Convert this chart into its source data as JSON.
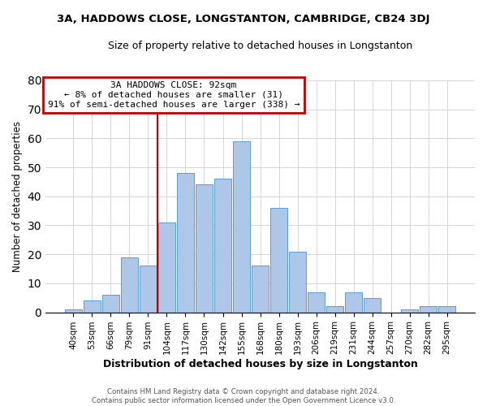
{
  "title": "3A, HADDOWS CLOSE, LONGSTANTON, CAMBRIDGE, CB24 3DJ",
  "subtitle": "Size of property relative to detached houses in Longstanton",
  "xlabel": "Distribution of detached houses by size in Longstanton",
  "ylabel": "Number of detached properties",
  "footer_line1": "Contains HM Land Registry data © Crown copyright and database right 2024.",
  "footer_line2": "Contains public sector information licensed under the Open Government Licence v3.0.",
  "bar_labels": [
    "40sqm",
    "53sqm",
    "66sqm",
    "79sqm",
    "91sqm",
    "104sqm",
    "117sqm",
    "130sqm",
    "142sqm",
    "155sqm",
    "168sqm",
    "180sqm",
    "193sqm",
    "206sqm",
    "219sqm",
    "231sqm",
    "244sqm",
    "257sqm",
    "270sqm",
    "282sqm",
    "295sqm"
  ],
  "bar_values": [
    1,
    4,
    6,
    19,
    16,
    31,
    48,
    44,
    46,
    59,
    16,
    36,
    21,
    7,
    2,
    7,
    5,
    0,
    1,
    2,
    2
  ],
  "bar_color": "#aec6e8",
  "bar_edge_color": "#5b9bd5",
  "ylim": [
    0,
    80
  ],
  "yticks": [
    0,
    10,
    20,
    30,
    40,
    50,
    60,
    70,
    80
  ],
  "annotation_line1": "3A HADDOWS CLOSE: 92sqm",
  "annotation_line2": "← 8% of detached houses are smaller (31)",
  "annotation_line3": "91% of semi-detached houses are larger (338) →",
  "annotation_box_color": "#c00000",
  "vline_x_index": 4.5,
  "background_color": "#ffffff",
  "grid_color": "#d0d0d0"
}
